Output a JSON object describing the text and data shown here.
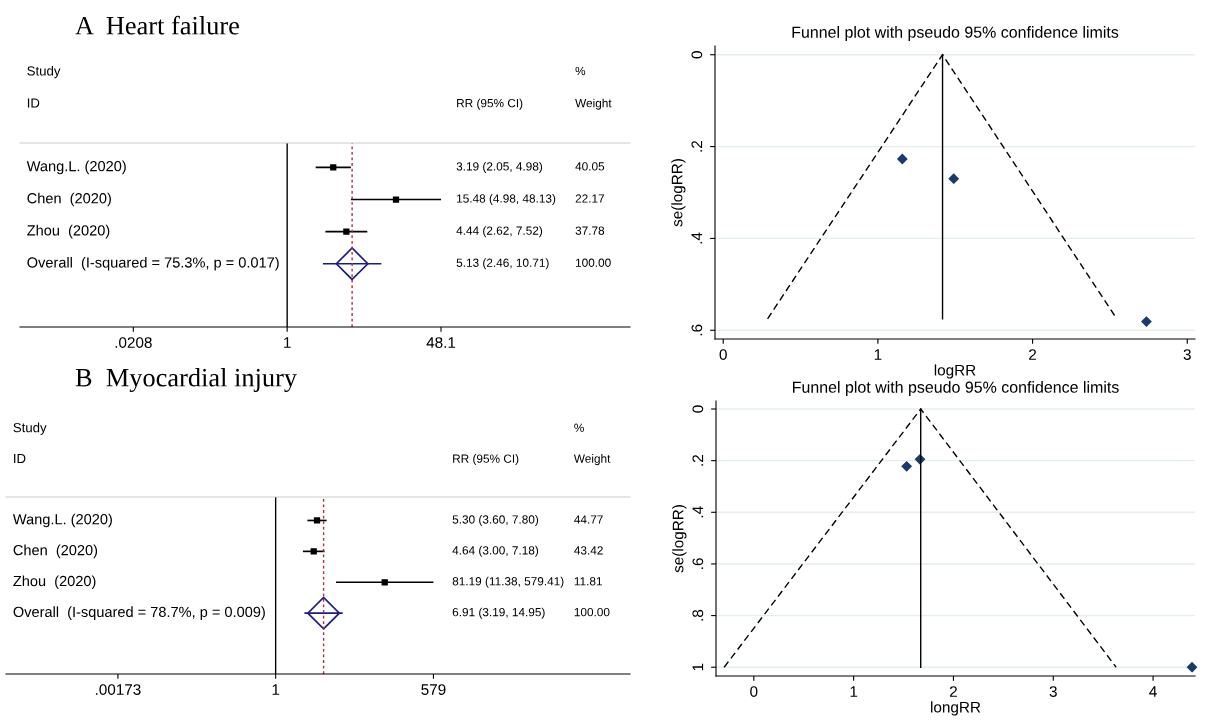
{
  "chart_data": [
    {
      "type": "scatter",
      "title": "A  Heart failure",
      "orientation": "horizontal",
      "log": "x",
      "tick_labels": "x",
      "categories": [
        "Wang.L. (2020)",
        "Chen  (2020)",
        "Zhou  (2020)",
        "Overall  (I-squared = 75.3%, p = 0.017)"
      ],
      "xlim": [
        0.0012,
        5600
      ],
      "xticks": [
        {
          "value": 0.0208,
          "label": ".0208"
        },
        1,
        48.1
      ],
      "series": [
        {
          "color": "#000000",
          "marker": "square",
          "values": [
            3.19,
            15.48,
            4.44,
            null
          ],
          "errors": [
            [
              2.05,
              4.98
            ],
            [
              4.98,
              48.13
            ],
            [
              2.62,
              7.52
            ],
            null
          ]
        },
        {
          "color": "#1c1c80",
          "marker": "diamond",
          "values": [
            null,
            null,
            null,
            5.13
          ],
          "errors": [
            null,
            null,
            null,
            [
              2.46,
              10.71
            ]
          ]
        }
      ],
      "ref_lines": [
        {
          "axis": "x",
          "value": 1,
          "color": "#000000",
          "line_style": "solid"
        },
        {
          "axis": "x",
          "value": 5.13,
          "color": "#b03040",
          "line_style": "dotted"
        }
      ],
      "annotations": [
        "Study",
        "%",
        "ID",
        "RR (95% CI)",
        "Weight",
        "3.19 (2.05, 4.98)",
        "40.05",
        "15.48 (4.98, 48.13)",
        "22.17",
        "4.44 (2.62, 7.52)",
        "37.78",
        "5.13 (2.46, 10.71)",
        "100.00"
      ]
    },
    {
      "type": "scatter",
      "title": "Funnel plot with pseudo 95% confidence limits",
      "xlabel": "logRR",
      "ylabel": "se(logRR)",
      "grid": "y",
      "xlim": [
        -0.053,
        3.05
      ],
      "ylim": [
        0.619,
        -0.019
      ],
      "xticks": [
        0,
        1,
        2,
        3
      ],
      "yticks": [
        0,
        {
          "value": 0.2,
          "label": ".2"
        },
        {
          "value": 0.4,
          "label": ".4"
        },
        {
          "value": 0.6,
          "label": ".6"
        }
      ],
      "series": [
        {
          "type": "scatter",
          "color": "#1a3a6b",
          "marker": "diamond",
          "x": [
            1.158,
            1.49,
            2.736
          ],
          "values": [
            0.227,
            0.27,
            0.581
          ]
        },
        {
          "type": "line",
          "color": "#000000",
          "line_style": "dashed",
          "x": [
            0.287,
            1.418,
            2.544
          ],
          "values": [
            0.575,
            0,
            0.575
          ]
        },
        {
          "type": "line",
          "color": "#000000",
          "line_style": "solid",
          "x": [
            1.418,
            1.418
          ],
          "values": [
            0,
            0.575
          ]
        }
      ]
    },
    {
      "type": "scatter",
      "title": "B  Myocardial injury",
      "orientation": "horizontal",
      "log": "x",
      "tick_labels": "x",
      "categories": [
        "Wang.L. (2020)",
        "Chen  (2020)",
        "Zhou  (2020)",
        "Overall  (I-squared = 78.7%, p = 0.009)"
      ],
      "xlim": [
        1.9e-05,
        1600000
      ],
      "xticks": [
        {
          "value": 0.00173,
          "label": ".00173"
        },
        1,
        579
      ],
      "series": [
        {
          "color": "#000000",
          "marker": "square",
          "values": [
            5.3,
            4.64,
            81.19,
            null
          ],
          "errors": [
            [
              3.6,
              7.8
            ],
            [
              3.0,
              7.18
            ],
            [
              11.38,
              579.41
            ],
            null
          ]
        },
        {
          "color": "#1c1c80",
          "marker": "diamond",
          "values": [
            null,
            null,
            null,
            6.91
          ],
          "errors": [
            null,
            null,
            null,
            [
              3.19,
              14.95
            ]
          ]
        }
      ],
      "ref_lines": [
        {
          "axis": "x",
          "value": 1,
          "color": "#000000",
          "line_style": "solid"
        },
        {
          "axis": "x",
          "value": 6.91,
          "color": "#b03040",
          "line_style": "dotted"
        }
      ],
      "annotations": [
        "Study",
        "%",
        "ID",
        "RR (95% CI)",
        "Weight",
        "5.30 (3.60, 7.80)",
        "44.77",
        "4.64 (3.00, 7.18)",
        "43.42",
        "81.19 (11.38, 579.41)",
        "11.81",
        "6.91 (3.19, 14.95)",
        "100.00"
      ]
    },
    {
      "type": "scatter",
      "title": "Funnel plot with pseudo 95% confidence limits",
      "xlabel": "longRR",
      "ylabel": "se(logRR)",
      "grid": "y",
      "xlim": [
        -0.379,
        4.42
      ],
      "ylim": [
        1.034,
        -0.031
      ],
      "xticks": [
        0,
        1,
        2,
        3,
        4
      ],
      "yticks": [
        0,
        {
          "value": 0.2,
          "label": ".2"
        },
        {
          "value": 0.4,
          "label": ".4"
        },
        {
          "value": 0.6,
          "label": ".6"
        },
        {
          "value": 0.8,
          "label": ".8"
        },
        1
      ],
      "series": [
        {
          "type": "scatter",
          "color": "#1a3a6b",
          "marker": "diamond",
          "x": [
            1.531,
            1.665,
            4.39
          ],
          "values": [
            0.222,
            0.195,
            1.0
          ]
        },
        {
          "type": "line",
          "color": "#000000",
          "line_style": "dashed",
          "x": [
            -0.297,
            1.672,
            3.63
          ],
          "values": [
            1.0,
            0,
            1.0
          ]
        },
        {
          "type": "line",
          "color": "#000000",
          "line_style": "solid",
          "x": [
            1.672,
            1.672
          ],
          "values": [
            0,
            1.0
          ]
        }
      ]
    }
  ]
}
